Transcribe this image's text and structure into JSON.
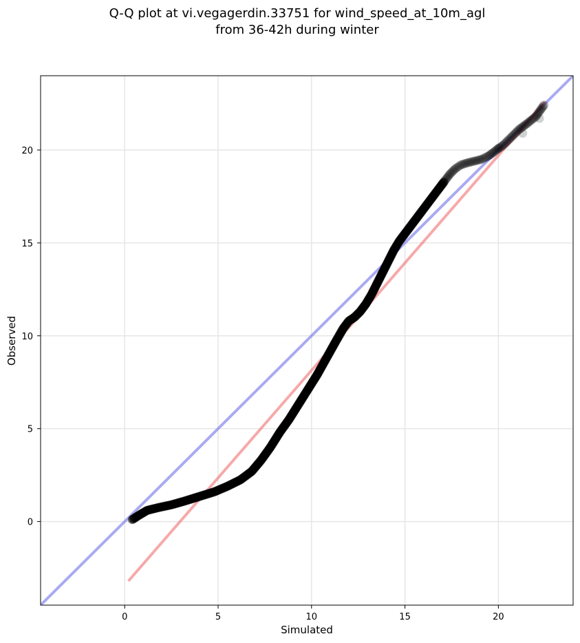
{
  "chart_data": {
    "type": "scatter",
    "title_line1": "Q-Q plot at vi.vegagerdin.33751 for wind_speed_at_10m_agl",
    "title_line2": "from 36-42h during winter",
    "xlabel": "Simulated",
    "ylabel": "Observed",
    "xlim": [
      -4.5,
      24
    ],
    "ylim": [
      -4.5,
      24
    ],
    "xticks": [
      0,
      5,
      10,
      15,
      20
    ],
    "yticks": [
      0,
      5,
      10,
      15,
      20
    ],
    "xtick_labels": [
      "0",
      "5",
      "10",
      "15",
      "20"
    ],
    "ytick_labels": [
      "0",
      "5",
      "10",
      "15",
      "20"
    ],
    "grid": true,
    "identity_line": {
      "color": "#6f72e8",
      "opacity": 0.6,
      "x": [
        -4.5,
        24
      ],
      "y": [
        -4.5,
        24
      ]
    },
    "fit_line": {
      "color": "#f07070",
      "opacity": 0.6,
      "x": [
        0.2,
        22.5
      ],
      "y": [
        -3.2,
        22.6
      ]
    },
    "quantile_curve": {
      "x": [
        0.4,
        0.7,
        1.2,
        1.8,
        2.5,
        3.2,
        4.0,
        4.8,
        5.5,
        6.2,
        6.8,
        7.3,
        7.8,
        8.3,
        8.8,
        9.3,
        9.8,
        10.3,
        10.8,
        11.3,
        11.7,
        12.0,
        12.3,
        12.6,
        12.9,
        13.2,
        13.5,
        13.8,
        14.1,
        14.4,
        14.7,
        15.0,
        15.3,
        15.6,
        15.9,
        16.2,
        16.5,
        16.8,
        17.1,
        17.4,
        17.7,
        18.0,
        18.3,
        18.7,
        19.1,
        19.5,
        19.9,
        20.3,
        20.7,
        21.1,
        21.5,
        22.0,
        22.5
      ],
      "y": [
        0.1,
        0.3,
        0.6,
        0.75,
        0.9,
        1.1,
        1.35,
        1.6,
        1.9,
        2.25,
        2.7,
        3.3,
        4.0,
        4.8,
        5.5,
        6.3,
        7.1,
        7.9,
        8.8,
        9.7,
        10.4,
        10.8,
        11.0,
        11.3,
        11.7,
        12.2,
        12.8,
        13.4,
        14.0,
        14.6,
        15.1,
        15.5,
        15.9,
        16.3,
        16.7,
        17.1,
        17.5,
        17.9,
        18.3,
        18.7,
        19.0,
        19.2,
        19.3,
        19.4,
        19.5,
        19.7,
        20.0,
        20.3,
        20.7,
        21.1,
        21.4,
        21.8,
        22.5
      ],
      "marker_color": "#000000",
      "marker_opacity": 0.3
    },
    "outliers": {
      "x": [
        22.2,
        21.3,
        20.0
      ],
      "y": [
        21.7,
        20.9,
        20.1
      ]
    }
  }
}
